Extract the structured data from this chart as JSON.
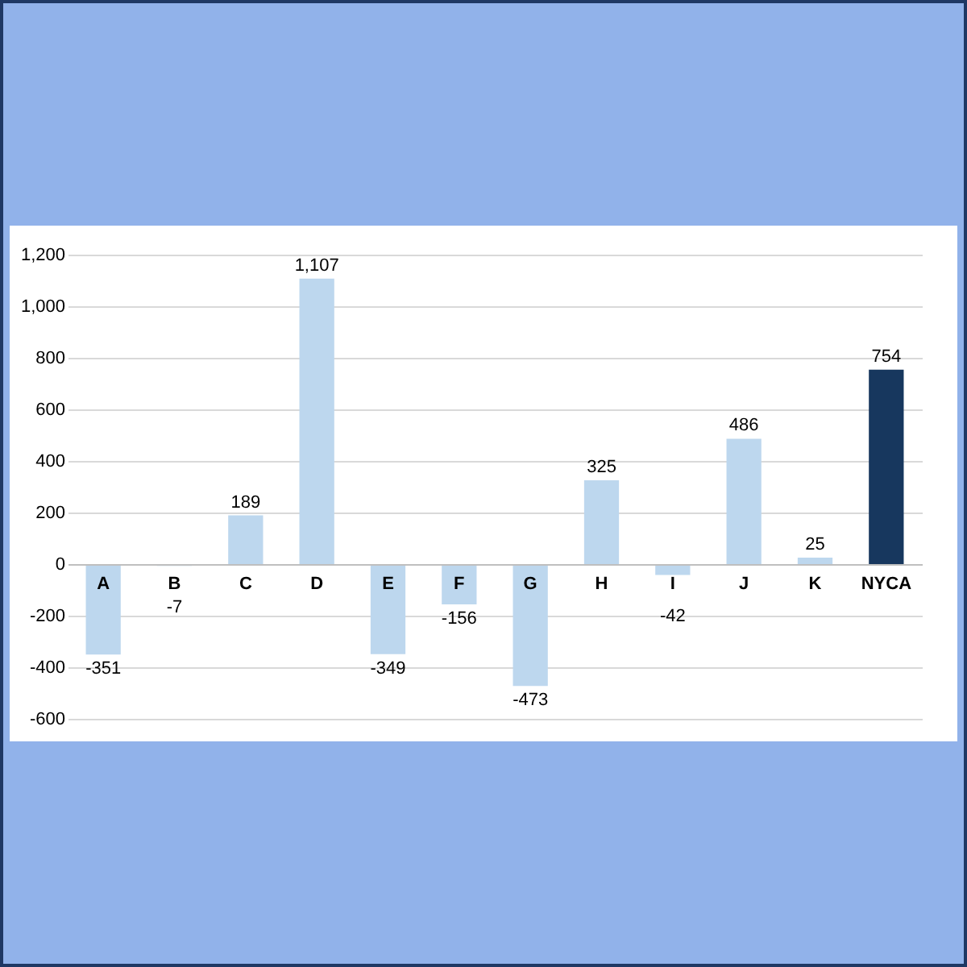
{
  "chart_data": {
    "type": "bar",
    "categories": [
      "A",
      "B",
      "C",
      "D",
      "E",
      "F",
      "G",
      "H",
      "I",
      "J",
      "K",
      "NYCA"
    ],
    "values": [
      -351,
      -7,
      189,
      1107,
      -349,
      -156,
      -473,
      325,
      -42,
      486,
      25,
      754
    ],
    "colors": [
      "#bdd7ee",
      "#bdd7ee",
      "#bdd7ee",
      "#bdd7ee",
      "#bdd7ee",
      "#bdd7ee",
      "#bdd7ee",
      "#bdd7ee",
      "#bdd7ee",
      "#bdd7ee",
      "#bdd7ee",
      "#17375e"
    ],
    "value_labels": [
      "-351",
      "-7",
      "189",
      "1,107",
      "-349",
      "-156",
      "-473",
      "325",
      "-42",
      "486",
      "25",
      "754"
    ],
    "ylim": [
      -600,
      1200
    ],
    "yticks": [
      {
        "value": -600,
        "label": "-600"
      },
      {
        "value": -400,
        "label": "-400"
      },
      {
        "value": -200,
        "label": "-200"
      },
      0,
      200,
      400,
      600,
      800,
      {
        "value": 1000,
        "label": "1,000"
      },
      {
        "value": 1200,
        "label": "1,200"
      }
    ],
    "grid": "y"
  }
}
